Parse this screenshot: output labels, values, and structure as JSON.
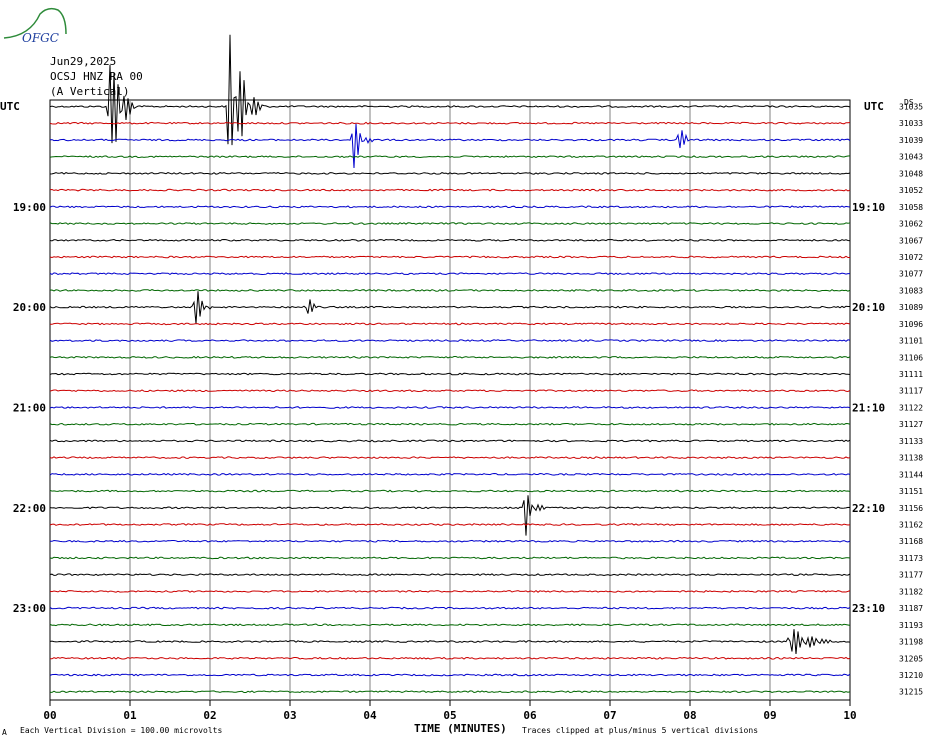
{
  "header": {
    "date": "Jun29,2025",
    "station": "OCSJ HNZ RA 00",
    "component": "(A Vertical)"
  },
  "logo": {
    "text": "OFGC"
  },
  "labels": {
    "utc_left": "UTC",
    "utc_right": "UTC",
    "ds_marker": "DS"
  },
  "footer": {
    "scale_note": "Each Vertical Division =  100.00 microvolts",
    "clip_note": "Traces clipped at plus/minus 5 vertical divisions",
    "corner_mark": "A"
  },
  "colors": {
    "trace_cycle": [
      "#000000",
      "#cc0000",
      "#0000cc",
      "#006600"
    ],
    "grid": "#808080"
  },
  "chart_data": {
    "type": "line",
    "title": "",
    "xlabel": "TIME (MINUTES)",
    "ylabel": "",
    "xlim": [
      0,
      10
    ],
    "x_ticks": [
      "00",
      "01",
      "02",
      "03",
      "04",
      "05",
      "06",
      "07",
      "08",
      "09",
      "10"
    ],
    "grid": true,
    "left_time_labels": [
      {
        "row": 6,
        "text": "19:00"
      },
      {
        "row": 12,
        "text": "20:00"
      },
      {
        "row": 18,
        "text": "21:00"
      },
      {
        "row": 24,
        "text": "22:00"
      },
      {
        "row": 30,
        "text": "23:00"
      }
    ],
    "right_time_labels": [
      {
        "row": 6,
        "text": "19:10"
      },
      {
        "row": 12,
        "text": "20:10"
      },
      {
        "row": 18,
        "text": "21:10"
      },
      {
        "row": 24,
        "text": "22:10"
      },
      {
        "row": 30,
        "text": "23:10"
      }
    ],
    "row_values": [
      "31035",
      "31033",
      "31039",
      "31043",
      "31048",
      "31052",
      "31058",
      "31062",
      "31067",
      "31072",
      "31077",
      "31083",
      "31089",
      "31096",
      "31101",
      "31106",
      "31111",
      "31117",
      "31122",
      "31127",
      "31133",
      "31138",
      "31144",
      "31151",
      "31156",
      "31162",
      "31168",
      "31173",
      "31177",
      "31182",
      "31187",
      "31193",
      "31198",
      "31205",
      "31210",
      "31215"
    ],
    "events": [
      {
        "row": 0,
        "minute": 0.75,
        "amp": 5.0,
        "dur": 0.35
      },
      {
        "row": 0,
        "minute": 2.25,
        "amp": 5.0,
        "dur": 0.45
      },
      {
        "row": 2,
        "minute": 3.8,
        "amp": 1.8,
        "dur": 0.25
      },
      {
        "row": 2,
        "minute": 7.85,
        "amp": 1.0,
        "dur": 0.25
      },
      {
        "row": 12,
        "minute": 1.82,
        "amp": 1.8,
        "dur": 0.18
      },
      {
        "row": 12,
        "minute": 3.22,
        "amp": 1.2,
        "dur": 0.15
      },
      {
        "row": 24,
        "minute": 5.95,
        "amp": 1.6,
        "dur": 0.25
      },
      {
        "row": 32,
        "minute": 9.25,
        "amp": 1.3,
        "dur": 0.6
      }
    ]
  }
}
